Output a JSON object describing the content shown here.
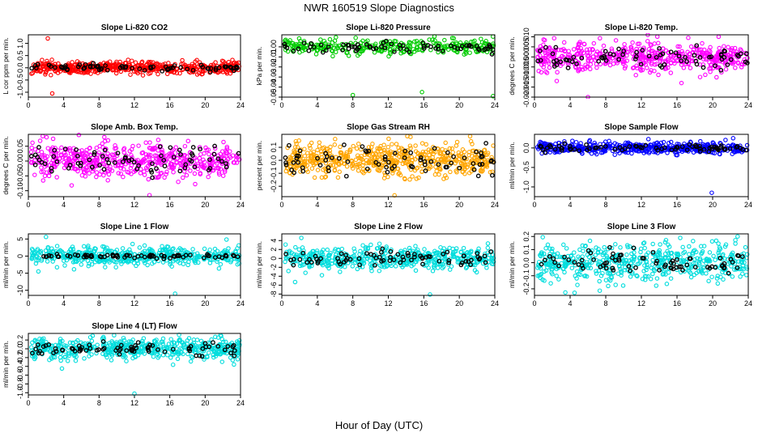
{
  "page": {
    "title": "NWR  160519  Slope Diagnostics",
    "footer_label": "Hour of Day (UTC)"
  },
  "chart_data": [
    {
      "type": "scatter",
      "title": "Slope Li-820 CO2",
      "ylabel": "L cor ppm per min.",
      "xlim": [
        0,
        24
      ],
      "ylim": [
        -1.2,
        1.35
      ],
      "x_ticks": [
        0,
        4,
        8,
        12,
        16,
        20,
        24
      ],
      "x_tick_labels": [
        "0",
        "4",
        "8",
        "12",
        "16",
        "20",
        "24"
      ],
      "y_ticks": [
        -1.0,
        -0.5,
        0.0,
        0.5,
        1.0
      ],
      "y_tick_labels": [
        "-1.0",
        "-0.5",
        "0.0",
        "0.5",
        "1.0"
      ],
      "series": [
        {
          "color": "#ff0000",
          "spread": 0.12,
          "count": 520,
          "outliers": [
            [
              2.2,
              1.2
            ],
            [
              2.7,
              -1.05
            ]
          ]
        },
        {
          "color": "#000000",
          "spread": 0.08,
          "count": 75,
          "outliers": []
        }
      ]
    },
    {
      "type": "scatter",
      "title": "Slope Li-820 Pressure",
      "ylabel": "kPa per min.",
      "xlim": [
        0,
        24
      ],
      "ylim": [
        -0.05,
        0.012
      ],
      "x_ticks": [
        0,
        4,
        8,
        12,
        16,
        20,
        24
      ],
      "x_tick_labels": [
        "0",
        "4",
        "8",
        "12",
        "16",
        "20",
        "24"
      ],
      "y_ticks": [
        -0.05,
        -0.04,
        -0.03,
        -0.02,
        -0.01,
        0.0
      ],
      "y_tick_labels": [
        "-0.05",
        "-0.04",
        "-0.03",
        "-0.02",
        "-0.01",
        "0.00"
      ],
      "series": [
        {
          "color": "#00cc00",
          "spread": 0.0035,
          "count": 300,
          "outliers": [
            [
              8.0,
              -0.048
            ],
            [
              15.8,
              -0.045
            ],
            [
              23.8,
              -0.049
            ]
          ]
        },
        {
          "color": "#000000",
          "spread": 0.0025,
          "count": 70,
          "outliers": []
        }
      ]
    },
    {
      "type": "scatter",
      "title": "Slope Li-820 Temp.",
      "ylabel": "degrees C per min.",
      "xlim": [
        0,
        24
      ],
      "ylim": [
        -0.02,
        0.011
      ],
      "x_ticks": [
        0,
        4,
        8,
        12,
        16,
        20,
        24
      ],
      "x_tick_labels": [
        "0",
        "4",
        "8",
        "12",
        "16",
        "20",
        "24"
      ],
      "y_ticks": [
        -0.02,
        -0.015,
        -0.01,
        -0.005,
        0.0,
        0.005,
        0.01
      ],
      "y_tick_labels": [
        "-0.020",
        "-0.015",
        "-0.010",
        "-0.005",
        "0.000",
        "0.005",
        "0.010"
      ],
      "series": [
        {
          "color": "#ff00ff",
          "spread": 0.0035,
          "count": 520,
          "outliers": [
            [
              2.5,
              -0.012
            ],
            [
              6.0,
              -0.02
            ],
            [
              16.5,
              -0.013
            ]
          ]
        },
        {
          "color": "#000000",
          "spread": 0.003,
          "count": 75,
          "outliers": []
        }
      ]
    },
    {
      "type": "scatter",
      "title": "Slope Amb. Box Temp.",
      "ylabel": "degrees C per min.",
      "xlim": [
        0,
        24
      ],
      "ylim": [
        -0.12,
        0.09
      ],
      "x_ticks": [
        0,
        4,
        8,
        12,
        16,
        20,
        24
      ],
      "x_tick_labels": [
        "0",
        "4",
        "8",
        "12",
        "16",
        "20",
        "24"
      ],
      "y_ticks": [
        -0.1,
        -0.05,
        0.0,
        0.05
      ],
      "y_tick_labels": [
        "-0.10",
        "-0.05",
        "0.00",
        "0.05"
      ],
      "series": [
        {
          "color": "#ff00ff",
          "spread": 0.03,
          "count": 520,
          "outliers": [
            [
              2.8,
              0.075
            ],
            [
              13.7,
              -0.115
            ]
          ]
        },
        {
          "color": "#000000",
          "spread": 0.025,
          "count": 75,
          "outliers": []
        }
      ]
    },
    {
      "type": "scatter",
      "title": "Slope Gas Stream RH",
      "ylabel": "percent per min.",
      "xlim": [
        0,
        24
      ],
      "ylim": [
        -0.28,
        0.2
      ],
      "x_ticks": [
        0,
        4,
        8,
        12,
        16,
        20,
        24
      ],
      "x_tick_labels": [
        "0",
        "4",
        "8",
        "12",
        "16",
        "20",
        "24"
      ],
      "y_ticks": [
        -0.2,
        -0.1,
        0.0,
        0.1
      ],
      "y_tick_labels": [
        "-0.2",
        "-0.1",
        "0.0",
        "0.1"
      ],
      "series": [
        {
          "color": "#ffa500",
          "spread": 0.06,
          "count": 560,
          "outliers": [
            [
              12.7,
              -0.27
            ],
            [
              14.5,
              0.18
            ]
          ]
        },
        {
          "color": "#000000",
          "spread": 0.05,
          "count": 75,
          "outliers": []
        }
      ]
    },
    {
      "type": "scatter",
      "title": "Slope Sample Flow",
      "ylabel": "ml/min per min.",
      "xlim": [
        0,
        24
      ],
      "ylim": [
        -1.25,
        0.35
      ],
      "x_ticks": [
        0,
        4,
        8,
        12,
        16,
        20,
        24
      ],
      "x_tick_labels": [
        "0",
        "4",
        "8",
        "12",
        "16",
        "20",
        "24"
      ],
      "y_ticks": [
        -1.0,
        -0.5,
        0.0
      ],
      "y_tick_labels": [
        "-1.0",
        "-0.5",
        "0.0"
      ],
      "series": [
        {
          "color": "#0000ff",
          "spread": 0.07,
          "count": 480,
          "outliers": [
            [
              19.9,
              -1.15
            ],
            [
              22.3,
              0.25
            ]
          ]
        },
        {
          "color": "#000000",
          "spread": 0.05,
          "count": 75,
          "outliers": []
        }
      ]
    },
    {
      "type": "scatter",
      "title": "Slope Line 1 Flow",
      "ylabel": "ml/min per min.",
      "xlim": [
        0,
        24
      ],
      "ylim": [
        -11.5,
        6.5
      ],
      "x_ticks": [
        0,
        4,
        8,
        12,
        16,
        20,
        24
      ],
      "x_tick_labels": [
        "0",
        "4",
        "8",
        "12",
        "16",
        "20",
        "24"
      ],
      "y_ticks": [
        -10,
        -5,
        0,
        5
      ],
      "y_tick_labels": [
        "-10",
        "-5",
        "0",
        "5"
      ],
      "series": [
        {
          "color": "#00dddd",
          "spread": 1.3,
          "count": 480,
          "outliers": [
            [
              2.0,
              5.6
            ],
            [
              16.6,
              -11.0
            ]
          ]
        },
        {
          "color": "#000000",
          "spread": 0.3,
          "count": 75,
          "outliers": []
        }
      ]
    },
    {
      "type": "scatter",
      "title": "Slope Line 2 Flow",
      "ylabel": "ml/min per min.",
      "xlim": [
        0,
        24
      ],
      "ylim": [
        -8.3,
        5.5
      ],
      "x_ticks": [
        0,
        4,
        8,
        12,
        16,
        20,
        24
      ],
      "x_tick_labels": [
        "0",
        "4",
        "8",
        "12",
        "16",
        "20",
        "24"
      ],
      "y_ticks": [
        -8,
        -6,
        -4,
        -2,
        0,
        2,
        4
      ],
      "y_tick_labels": [
        "-8",
        "-6",
        "-4",
        "-2",
        "0",
        "2",
        "4"
      ],
      "series": [
        {
          "color": "#00dddd",
          "spread": 1.2,
          "count": 480,
          "outliers": [
            [
              1.5,
              -5.3
            ],
            [
              16.7,
              -8.1
            ],
            [
              2.2,
              4.6
            ]
          ]
        },
        {
          "color": "#000000",
          "spread": 0.9,
          "count": 75,
          "outliers": []
        }
      ]
    },
    {
      "type": "scatter",
      "title": "Slope Line 3 Flow",
      "ylabel": "ml/min per min.",
      "xlim": [
        0,
        24
      ],
      "ylim": [
        -0.25,
        0.22
      ],
      "x_ticks": [
        0,
        4,
        8,
        12,
        16,
        20,
        24
      ],
      "x_tick_labels": [
        "0",
        "4",
        "8",
        "12",
        "16",
        "20",
        "24"
      ],
      "y_ticks": [
        -0.2,
        -0.1,
        0.0,
        0.1,
        0.2
      ],
      "y_tick_labels": [
        "-0.2",
        "-0.1",
        "0.0",
        "0.1",
        "0.2"
      ],
      "series": [
        {
          "color": "#00dddd",
          "spread": 0.07,
          "count": 520,
          "outliers": [
            [
              4.5,
              -0.23
            ],
            [
              22.8,
              0.2
            ]
          ]
        },
        {
          "color": "#000000",
          "spread": 0.05,
          "count": 75,
          "outliers": []
        }
      ]
    },
    {
      "type": "scatter",
      "title": "Slope Line 4 (LT) Flow",
      "ylabel": "ml/min per min.",
      "xlim": [
        0,
        24
      ],
      "ylim": [
        -1.05,
        0.35
      ],
      "x_ticks": [
        0,
        4,
        8,
        12,
        16,
        20,
        24
      ],
      "x_tick_labels": [
        "0",
        "4",
        "8",
        "12",
        "16",
        "20",
        "24"
      ],
      "y_ticks": [
        -1.0,
        -0.8,
        -0.6,
        -0.4,
        -0.2,
        0.0,
        0.2
      ],
      "y_tick_labels": [
        "-1.0",
        "-0.8",
        "-0.6",
        "-0.4",
        "-0.2",
        "0.0",
        "0.2"
      ],
      "series": [
        {
          "color": "#00dddd",
          "spread": 0.12,
          "count": 520,
          "outliers": [
            [
              12.0,
              -1.02
            ],
            [
              3.8,
              -0.45
            ]
          ]
        },
        {
          "color": "#000000",
          "spread": 0.08,
          "count": 75,
          "outliers": []
        }
      ]
    }
  ]
}
